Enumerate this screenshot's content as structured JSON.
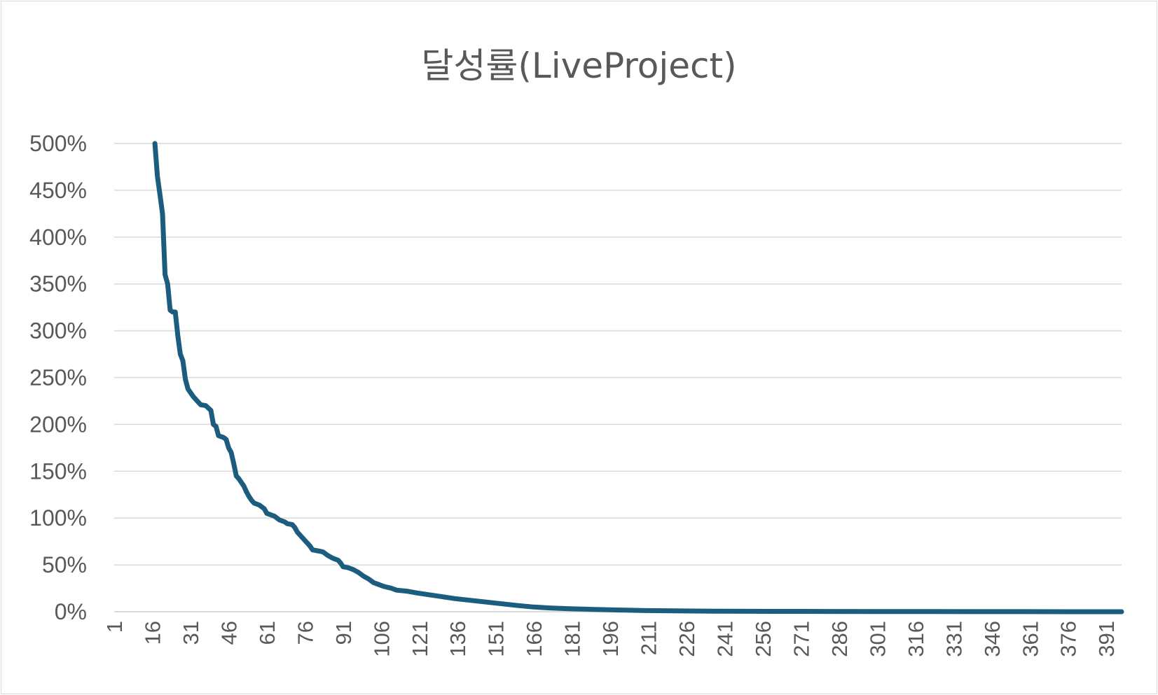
{
  "chart_data": {
    "type": "line",
    "title": "달성률(LiveProject)",
    "xlabel": "",
    "ylabel": "",
    "ylim": [
      0,
      5
    ],
    "xlim": [
      1,
      397
    ],
    "grid": true,
    "legend": "none",
    "series_color": "#1c5d7f",
    "grid_color": "#d9d9d9",
    "y_ticks": [
      {
        "value": 0,
        "label": "0%"
      },
      {
        "value": 0.5,
        "label": "50%"
      },
      {
        "value": 1,
        "label": "100%"
      },
      {
        "value": 1.5,
        "label": "150%"
      },
      {
        "value": 2,
        "label": "200%"
      },
      {
        "value": 2.5,
        "label": "250%"
      },
      {
        "value": 3,
        "label": "300%"
      },
      {
        "value": 3.5,
        "label": "350%"
      },
      {
        "value": 4,
        "label": "400%"
      },
      {
        "value": 4.5,
        "label": "450%"
      },
      {
        "value": 5,
        "label": "500%"
      }
    ],
    "x_ticks": [
      1,
      16,
      31,
      46,
      61,
      76,
      91,
      106,
      121,
      136,
      151,
      166,
      181,
      196,
      211,
      226,
      241,
      256,
      271,
      286,
      301,
      316,
      331,
      346,
      361,
      376,
      391
    ],
    "series": [
      {
        "points": [
          [
            17,
            5.0
          ],
          [
            18,
            4.65
          ],
          [
            19,
            4.45
          ],
          [
            20,
            4.25
          ],
          [
            21,
            3.6
          ],
          [
            22,
            3.5
          ],
          [
            23,
            3.22
          ],
          [
            24,
            3.2
          ],
          [
            25,
            3.2
          ],
          [
            26,
            2.95
          ],
          [
            27,
            2.75
          ],
          [
            28,
            2.68
          ],
          [
            29,
            2.48
          ],
          [
            30,
            2.38
          ],
          [
            32,
            2.3
          ],
          [
            34,
            2.24
          ],
          [
            35,
            2.21
          ],
          [
            37,
            2.2
          ],
          [
            39,
            2.15
          ],
          [
            40,
            2.0
          ],
          [
            41,
            1.98
          ],
          [
            42,
            1.88
          ],
          [
            44,
            1.86
          ],
          [
            45,
            1.84
          ],
          [
            46,
            1.75
          ],
          [
            47,
            1.7
          ],
          [
            48,
            1.58
          ],
          [
            49,
            1.45
          ],
          [
            50,
            1.42
          ],
          [
            51,
            1.38
          ],
          [
            52,
            1.34
          ],
          [
            53,
            1.28
          ],
          [
            54,
            1.23
          ],
          [
            55,
            1.19
          ],
          [
            56,
            1.16
          ],
          [
            58,
            1.14
          ],
          [
            60,
            1.1
          ],
          [
            61,
            1.05
          ],
          [
            62,
            1.04
          ],
          [
            64,
            1.02
          ],
          [
            66,
            0.98
          ],
          [
            68,
            0.96
          ],
          [
            69,
            0.94
          ],
          [
            71,
            0.93
          ],
          [
            72,
            0.9
          ],
          [
            73,
            0.85
          ],
          [
            74,
            0.82
          ],
          [
            75,
            0.79
          ],
          [
            76,
            0.76
          ],
          [
            77,
            0.73
          ],
          [
            78,
            0.7
          ],
          [
            79,
            0.66
          ],
          [
            81,
            0.65
          ],
          [
            83,
            0.64
          ],
          [
            85,
            0.6
          ],
          [
            87,
            0.57
          ],
          [
            89,
            0.55
          ],
          [
            90,
            0.52
          ],
          [
            91,
            0.48
          ],
          [
            93,
            0.47
          ],
          [
            95,
            0.45
          ],
          [
            97,
            0.42
          ],
          [
            99,
            0.38
          ],
          [
            101,
            0.35
          ],
          [
            103,
            0.31
          ],
          [
            105,
            0.29
          ],
          [
            107,
            0.27
          ],
          [
            110,
            0.25
          ],
          [
            112,
            0.23
          ],
          [
            116,
            0.22
          ],
          [
            120,
            0.2
          ],
          [
            125,
            0.18
          ],
          [
            130,
            0.16
          ],
          [
            135,
            0.14
          ],
          [
            140,
            0.125
          ],
          [
            145,
            0.11
          ],
          [
            150,
            0.095
          ],
          [
            155,
            0.08
          ],
          [
            160,
            0.065
          ],
          [
            166,
            0.05
          ],
          [
            172,
            0.04
          ],
          [
            180,
            0.032
          ],
          [
            190,
            0.025
          ],
          [
            200,
            0.018
          ],
          [
            210,
            0.012
          ],
          [
            225,
            0.008
          ],
          [
            240,
            0.005
          ],
          [
            260,
            0.004
          ],
          [
            280,
            0.003
          ],
          [
            300,
            0.002
          ],
          [
            320,
            0.0015
          ],
          [
            340,
            0.001
          ],
          [
            360,
            0.0005
          ],
          [
            380,
            0.0002
          ],
          [
            397,
            0.0
          ]
        ]
      }
    ]
  }
}
